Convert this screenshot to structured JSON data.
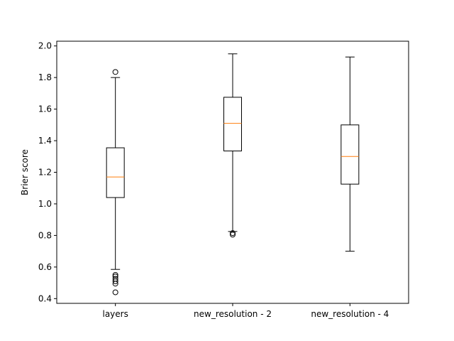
{
  "chart_data": {
    "type": "boxplot",
    "title": "",
    "xlabel": "",
    "ylabel": "Brier score",
    "ylim": [
      0.37,
      2.03
    ],
    "yticks": [
      0.4,
      0.6,
      0.8,
      1.0,
      1.2,
      1.4,
      1.6,
      1.8,
      2.0
    ],
    "ytick_labels": [
      "0.4",
      "0.6",
      "0.8",
      "1.0",
      "1.2",
      "1.4",
      "1.6",
      "1.8",
      "2.0"
    ],
    "grid": false,
    "categories": [
      "layers",
      "new_resolution - 2",
      "new_resolution - 4"
    ],
    "series": [
      {
        "category": "layers",
        "whisker_low": 0.585,
        "q1": 1.04,
        "median": 1.17,
        "q3": 1.355,
        "whisker_high": 1.8,
        "outliers": [
          1.835,
          0.55,
          0.54,
          0.525,
          0.51,
          0.495,
          0.44
        ]
      },
      {
        "category": "new_resolution - 2",
        "whisker_low": 0.825,
        "q1": 1.335,
        "median": 1.51,
        "q3": 1.675,
        "whisker_high": 1.95,
        "outliers": [
          0.815,
          0.805
        ]
      },
      {
        "category": "new_resolution - 4",
        "whisker_low": 0.7,
        "q1": 1.125,
        "median": 1.3,
        "q3": 1.5,
        "whisker_high": 1.93,
        "outliers": []
      }
    ],
    "colors": {
      "box": "#000000",
      "median": "#ff7f0e",
      "outlier": "#000000"
    }
  }
}
